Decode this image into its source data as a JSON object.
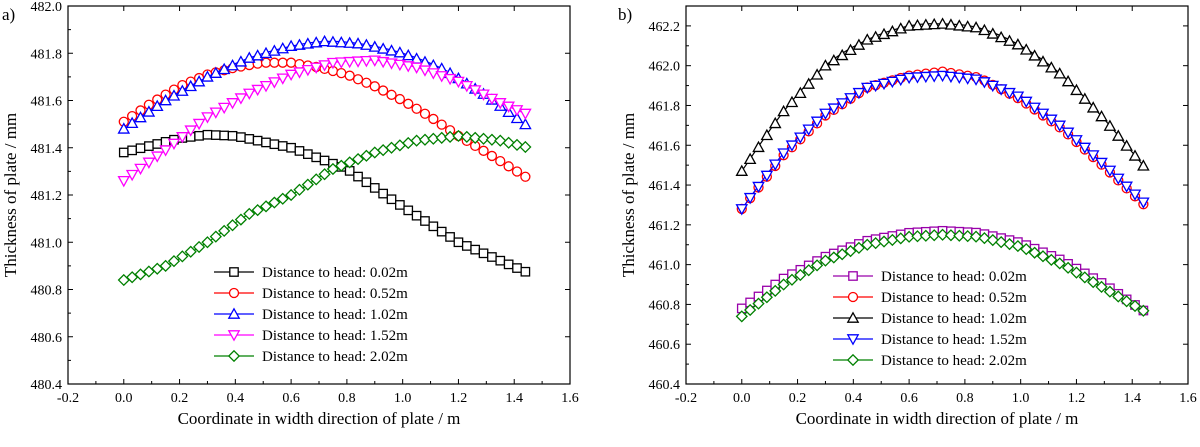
{
  "chart_data": [
    {
      "type": "line",
      "panel_label": "a)",
      "xlabel": "Coordinate in width direction of plate / m",
      "ylabel": "Thickness of plate / mm",
      "xlim": [
        -0.2,
        1.6
      ],
      "ylim": [
        480.4,
        482.0
      ],
      "xticks": [
        -0.2,
        0.0,
        0.2,
        0.4,
        0.6,
        0.8,
        1.0,
        1.2,
        1.4,
        1.6
      ],
      "yticks": [
        480.4,
        480.6,
        480.8,
        481.0,
        481.2,
        481.4,
        481.6,
        481.8,
        482.0
      ],
      "xtick_labels": [
        "-0.2",
        "0.0",
        "0.2",
        "0.4",
        "0.6",
        "0.8",
        "1.0",
        "1.2",
        "1.4",
        "1.6"
      ],
      "ytick_labels": [
        "480.4",
        "480.6",
        "480.8",
        "481.0",
        "481.2",
        "481.4",
        "481.6",
        "481.8",
        "482.0"
      ],
      "legend_position": "bottom-center",
      "series": [
        {
          "name": "Distance to head: 0.02m",
          "color": "#000000",
          "marker": "square",
          "x": [
            0,
            0.2,
            0.3,
            0.4,
            0.6,
            0.8,
            1.0,
            1.2,
            1.45
          ],
          "y": [
            481.38,
            481.44,
            481.455,
            481.45,
            481.4,
            481.31,
            481.15,
            481.0,
            480.87
          ]
        },
        {
          "name": "Distance to head: 0.52m",
          "color": "#ff0000",
          "marker": "circle",
          "x": [
            0,
            0.1,
            0.2,
            0.3,
            0.4,
            0.5,
            0.6,
            0.7,
            0.8,
            0.9,
            1.0,
            1.1,
            1.2,
            1.3,
            1.45
          ],
          "y": [
            481.51,
            481.59,
            481.66,
            481.71,
            481.74,
            481.76,
            481.76,
            481.74,
            481.71,
            481.66,
            481.6,
            481.53,
            481.45,
            481.38,
            481.27
          ]
        },
        {
          "name": "Distance to head: 1.02m",
          "color": "#0000ff",
          "marker": "triangle-up",
          "x": [
            0,
            0.15,
            0.3,
            0.45,
            0.6,
            0.72,
            0.85,
            1.0,
            1.15,
            1.3,
            1.45
          ],
          "y": [
            481.48,
            481.6,
            481.7,
            481.78,
            481.83,
            481.85,
            481.84,
            481.8,
            481.73,
            481.62,
            481.49
          ]
        },
        {
          "name": "Distance to head: 1.52m",
          "color": "#ff00ff",
          "marker": "triangle-down",
          "x": [
            0,
            0.15,
            0.3,
            0.45,
            0.6,
            0.75,
            0.9,
            1.05,
            1.2,
            1.35,
            1.45
          ],
          "y": [
            481.26,
            481.39,
            481.53,
            481.63,
            481.71,
            481.76,
            481.77,
            481.74,
            481.68,
            481.59,
            481.54
          ]
        },
        {
          "name": "Distance to head: 2.02m",
          "color": "#008000",
          "marker": "diamond",
          "x": [
            0,
            0.15,
            0.3,
            0.45,
            0.6,
            0.75,
            0.9,
            1.05,
            1.2,
            1.35,
            1.45
          ],
          "y": [
            480.84,
            480.9,
            481.0,
            481.12,
            481.2,
            481.31,
            481.38,
            481.43,
            481.45,
            481.43,
            481.4
          ]
        }
      ]
    },
    {
      "type": "line",
      "panel_label": "b)",
      "xlabel": "Coordinate in width direction of plate / m",
      "ylabel": "Thickness of plate / mm",
      "xlim": [
        -0.2,
        1.6
      ],
      "ylim": [
        460.4,
        462.3
      ],
      "xticks": [
        -0.2,
        0.0,
        0.2,
        0.4,
        0.6,
        0.8,
        1.0,
        1.2,
        1.4,
        1.6
      ],
      "yticks": [
        460.4,
        460.6,
        460.8,
        461.0,
        461.2,
        461.4,
        461.6,
        461.8,
        462.0,
        462.2
      ],
      "xtick_labels": [
        "-0.2",
        "0.0",
        "0.2",
        "0.4",
        "0.6",
        "0.8",
        "1.0",
        "1.2",
        "1.4",
        "1.6"
      ],
      "ytick_labels": [
        "460.4",
        "460.6",
        "460.8",
        "461.0",
        "461.2",
        "461.4",
        "461.6",
        "461.8",
        "462.0",
        "462.2"
      ],
      "legend_position": "bottom-center",
      "series": [
        {
          "name": "Distance to head: 0.02m",
          "color": "#9900aa",
          "marker": "square",
          "x": [
            0,
            0.15,
            0.3,
            0.45,
            0.6,
            0.72,
            0.85,
            1.0,
            1.15,
            1.3,
            1.45
          ],
          "y": [
            460.78,
            460.93,
            461.04,
            461.12,
            461.16,
            461.17,
            461.16,
            461.11,
            461.02,
            460.9,
            460.76
          ]
        },
        {
          "name": "Distance to head: 0.52m",
          "color": "#ff0000",
          "marker": "circle",
          "x": [
            0,
            0.15,
            0.3,
            0.45,
            0.6,
            0.72,
            0.85,
            1.0,
            1.15,
            1.3,
            1.45
          ],
          "y": [
            461.28,
            461.55,
            461.75,
            461.89,
            461.95,
            461.97,
            461.94,
            461.83,
            461.68,
            461.49,
            461.29
          ]
        },
        {
          "name": "Distance to head: 1.02m",
          "color": "#000000",
          "marker": "triangle-up",
          "x": [
            0,
            0.15,
            0.3,
            0.45,
            0.6,
            0.72,
            0.85,
            1.0,
            1.15,
            1.3,
            1.45
          ],
          "y": [
            461.47,
            461.77,
            462.0,
            462.13,
            462.2,
            462.21,
            462.19,
            462.1,
            461.95,
            461.73,
            461.48
          ]
        },
        {
          "name": "Distance to head: 1.52m",
          "color": "#0000ff",
          "marker": "triangle-down",
          "x": [
            0,
            0.15,
            0.3,
            0.45,
            0.6,
            0.72,
            0.85,
            1.0,
            1.15,
            1.3,
            1.45
          ],
          "y": [
            461.28,
            461.56,
            461.76,
            461.89,
            461.94,
            461.95,
            461.93,
            461.84,
            461.69,
            461.5,
            461.3
          ]
        },
        {
          "name": "Distance to head: 2.02m",
          "color": "#008000",
          "marker": "diamond",
          "x": [
            0,
            0.15,
            0.3,
            0.45,
            0.6,
            0.72,
            0.85,
            1.0,
            1.15,
            1.3,
            1.45
          ],
          "y": [
            460.74,
            460.9,
            461.02,
            461.1,
            461.14,
            461.15,
            461.14,
            461.09,
            461.0,
            460.88,
            460.76
          ]
        }
      ]
    }
  ]
}
